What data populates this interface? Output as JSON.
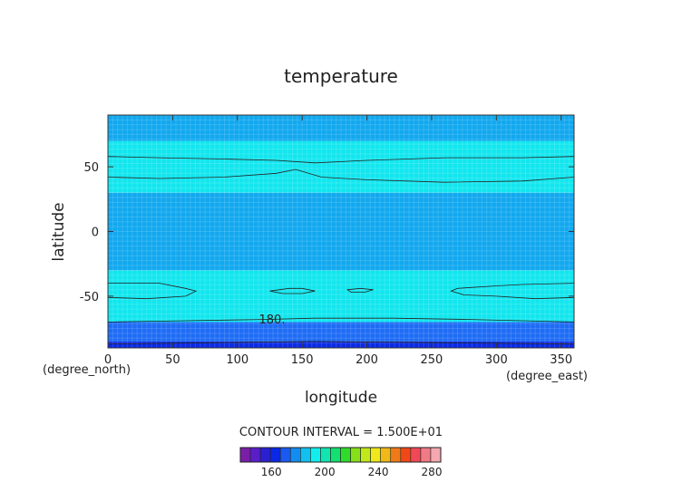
{
  "chart_data": {
    "type": "contour",
    "title": "temperature",
    "xlabel": "longitude",
    "ylabel": "latitude",
    "x_unit": "(degree_east)",
    "y_unit": "(degree_north)",
    "xlim": [
      0,
      360
    ],
    "ylim": [
      -90,
      90
    ],
    "x_ticks": [
      0,
      50,
      100,
      150,
      200,
      250,
      300,
      350
    ],
    "y_ticks": [
      -50,
      0,
      50
    ],
    "contour_interval_text": "CONTOUR INTERVAL = 1.500E+01",
    "contour_label": "180.",
    "latitude_bands": [
      {
        "lat": [
          -90,
          -85
        ],
        "color": "#0a2ae6"
      },
      {
        "lat": [
          -85,
          -70
        ],
        "color": "#1e6cf5"
      },
      {
        "lat": [
          -70,
          -30
        ],
        "color": "#12e6ee"
      },
      {
        "lat": [
          -30,
          30
        ],
        "color": "#12a8ef"
      },
      {
        "lat": [
          30,
          70
        ],
        "color": "#12e6ee"
      },
      {
        "lat": [
          70,
          90
        ],
        "color": "#12a8ef"
      }
    ],
    "colorbar": {
      "colors": [
        "#7a1ea8",
        "#5a1ec8",
        "#2a20d0",
        "#0a28e6",
        "#1a5af0",
        "#128cf0",
        "#12c0f0",
        "#12eeee",
        "#12e6b0",
        "#12e070",
        "#30dc2a",
        "#86e01a",
        "#c0e81a",
        "#f0e81a",
        "#f0b818",
        "#f07a18",
        "#f04818",
        "#f04858",
        "#f07a86",
        "#f4a8b0"
      ],
      "tick_labels": [
        "160",
        "200",
        "240",
        "280"
      ],
      "tick_values": [
        160,
        200,
        240,
        280
      ],
      "range": [
        130,
        280
      ]
    }
  }
}
